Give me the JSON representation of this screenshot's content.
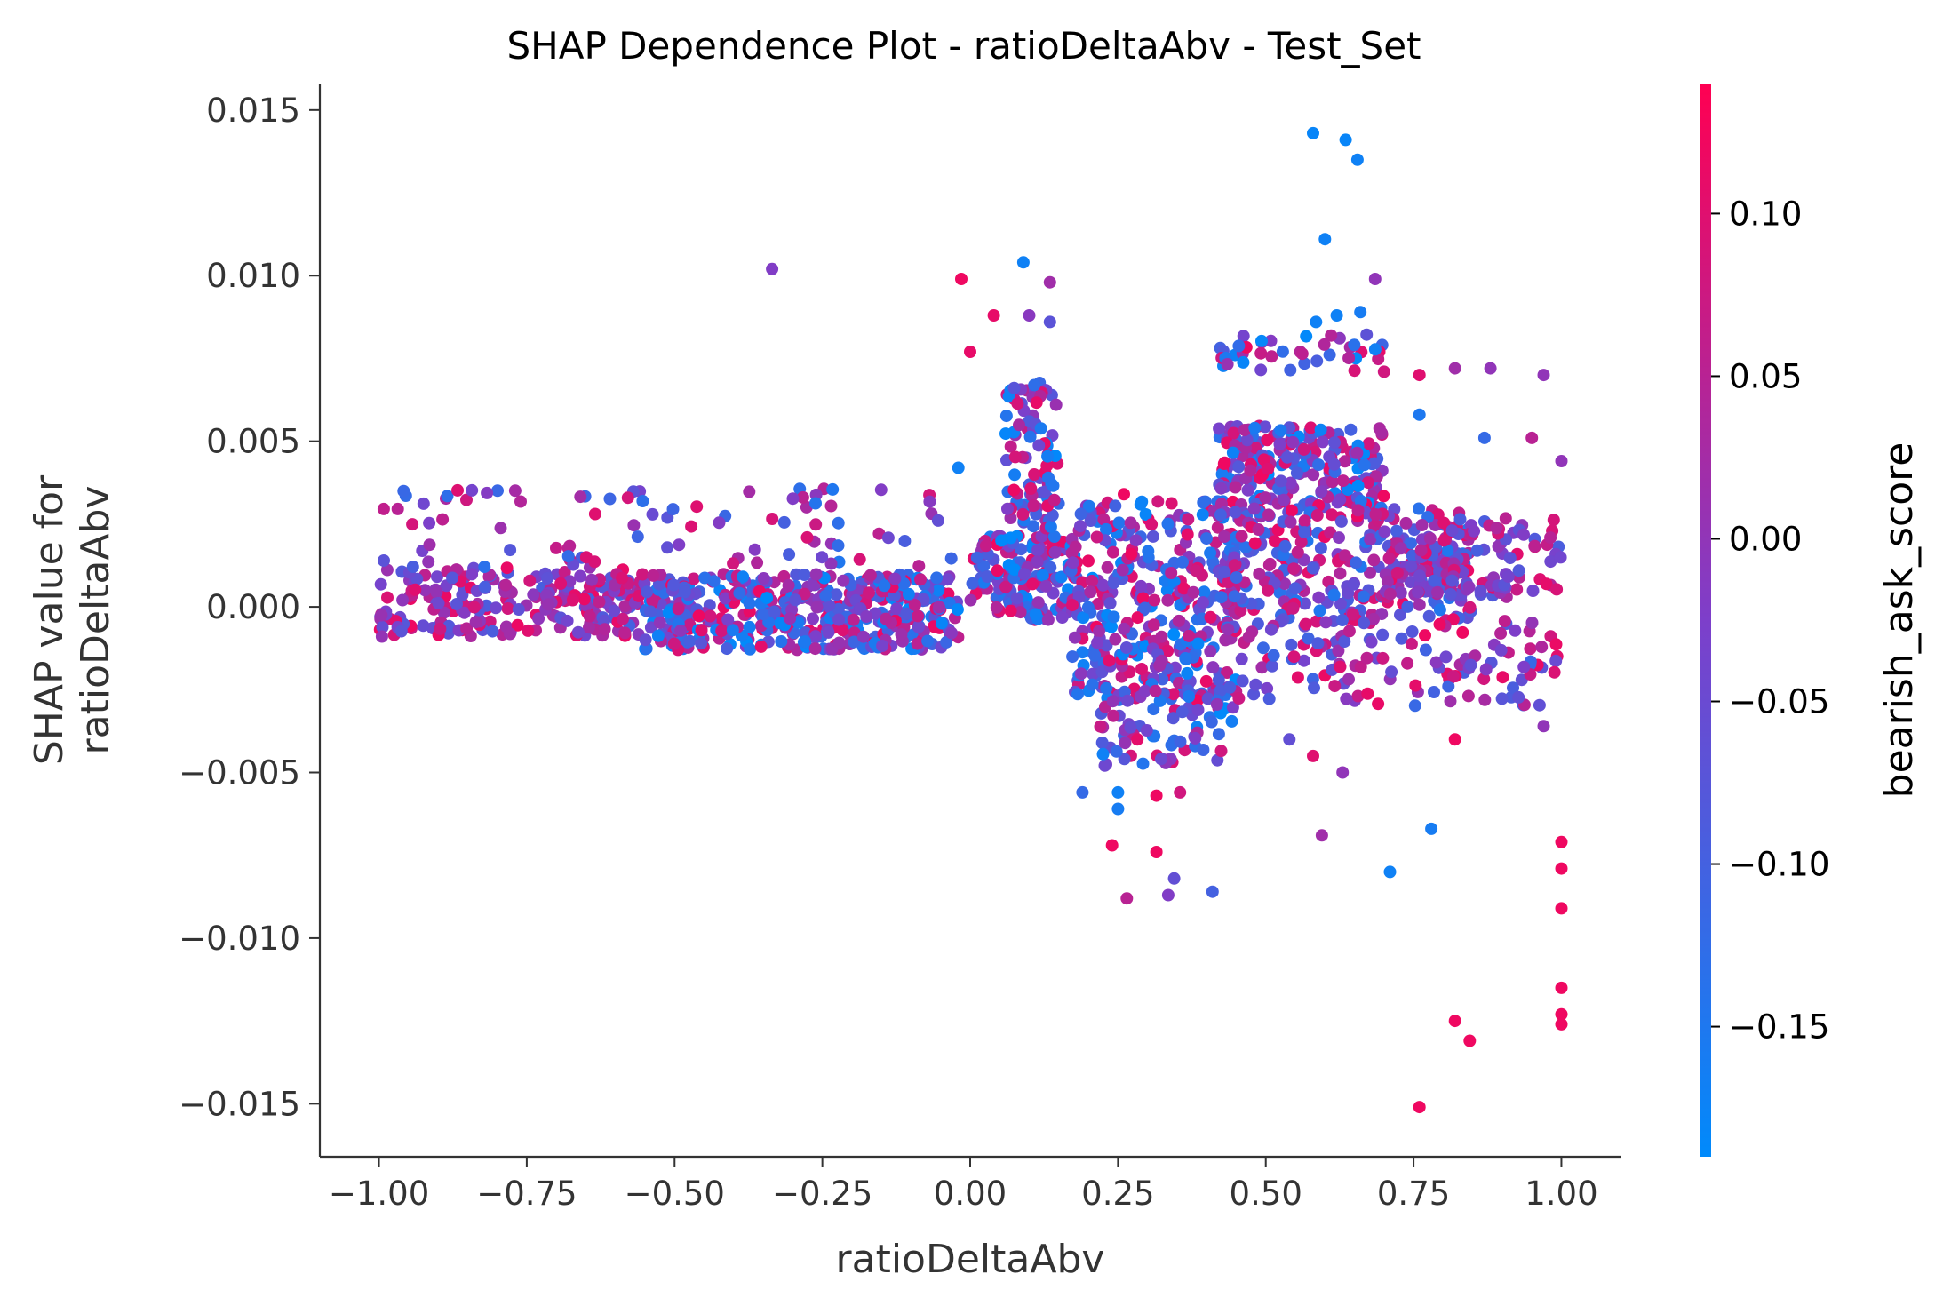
{
  "chart_data": {
    "type": "scatter",
    "title": "SHAP Dependence Plot - ratioDeltaAbv - Test_Set",
    "xlabel": "ratioDeltaAbv",
    "ylabel_lines": [
      "SHAP value for",
      "ratioDeltaAbv"
    ],
    "xlim": [
      -1.1,
      1.1
    ],
    "ylim": [
      -0.0166,
      0.0158
    ],
    "x_ticks": [
      {
        "value": -1.0,
        "label": "−1.00"
      },
      {
        "value": -0.75,
        "label": "−0.75"
      },
      {
        "value": -0.5,
        "label": "−0.50"
      },
      {
        "value": -0.25,
        "label": "−0.25"
      },
      {
        "value": 0.0,
        "label": "0.00"
      },
      {
        "value": 0.25,
        "label": "0.25"
      },
      {
        "value": 0.5,
        "label": "0.50"
      },
      {
        "value": 0.75,
        "label": "0.75"
      },
      {
        "value": 1.0,
        "label": "1.00"
      }
    ],
    "y_ticks": [
      {
        "value": 0.015,
        "label": "0.015"
      },
      {
        "value": 0.01,
        "label": "0.010"
      },
      {
        "value": 0.005,
        "label": "0.005"
      },
      {
        "value": 0.0,
        "label": "0.000"
      },
      {
        "value": -0.005,
        "label": "−0.005"
      },
      {
        "value": -0.01,
        "label": "−0.010"
      },
      {
        "value": -0.015,
        "label": "−0.015"
      }
    ],
    "grid": false,
    "colorbar": {
      "title": "bearish_ask_score",
      "range": [
        -0.19,
        0.14
      ],
      "low_color": "#008afb",
      "mid_color": "#7d3fca",
      "high_color": "#ff0052",
      "ticks": [
        {
          "value": 0.1,
          "label": "0.10"
        },
        {
          "value": 0.05,
          "label": "0.05"
        },
        {
          "value": 0.0,
          "label": "0.00"
        },
        {
          "value": -0.05,
          "label": "−0.05"
        },
        {
          "value": -0.1,
          "label": "−0.10"
        },
        {
          "value": -0.15,
          "label": "−0.15"
        }
      ]
    },
    "outlier_points": [
      {
        "x": 0.58,
        "y": 0.0143,
        "c": -0.18
      },
      {
        "x": 0.635,
        "y": 0.0141,
        "c": -0.18
      },
      {
        "x": 0.655,
        "y": 0.0135,
        "c": -0.17
      },
      {
        "x": 0.6,
        "y": 0.0111,
        "c": -0.17
      },
      {
        "x": -0.335,
        "y": 0.0102,
        "c": -0.02
      },
      {
        "x": 0.09,
        "y": 0.0104,
        "c": -0.17
      },
      {
        "x": -0.015,
        "y": 0.0099,
        "c": 0.12
      },
      {
        "x": 0.135,
        "y": 0.0098,
        "c": 0.02
      },
      {
        "x": 0.685,
        "y": 0.0099,
        "c": 0.0
      },
      {
        "x": 0.66,
        "y": 0.0089,
        "c": -0.16
      },
      {
        "x": 0.62,
        "y": 0.0088,
        "c": -0.17
      },
      {
        "x": 0.1,
        "y": 0.0088,
        "c": -0.01
      },
      {
        "x": 0.04,
        "y": 0.0088,
        "c": 0.11
      },
      {
        "x": 0.135,
        "y": 0.0086,
        "c": -0.07
      },
      {
        "x": 0.585,
        "y": 0.0086,
        "c": -0.17
      },
      {
        "x": 0.0,
        "y": 0.0077,
        "c": 0.11
      },
      {
        "x": 0.82,
        "y": 0.0072,
        "c": 0.02
      },
      {
        "x": 0.88,
        "y": 0.0072,
        "c": 0.0
      },
      {
        "x": 0.97,
        "y": 0.007,
        "c": 0.0
      },
      {
        "x": 0.76,
        "y": 0.007,
        "c": 0.1
      },
      {
        "x": 0.7,
        "y": 0.0071,
        "c": 0.08
      },
      {
        "x": 0.87,
        "y": 0.0051,
        "c": -0.12
      },
      {
        "x": 0.95,
        "y": 0.0051,
        "c": 0.05
      },
      {
        "x": 1.0,
        "y": 0.0044,
        "c": 0.0
      },
      {
        "x": -0.02,
        "y": 0.0042,
        "c": -0.17
      },
      {
        "x": 0.76,
        "y": 0.0058,
        "c": -0.15
      },
      {
        "x": 0.26,
        "y": 0.0034,
        "c": 0.12
      },
      {
        "x": 0.19,
        "y": -0.0056,
        "c": -0.12
      },
      {
        "x": 0.25,
        "y": -0.0056,
        "c": -0.17
      },
      {
        "x": 0.25,
        "y": -0.0061,
        "c": -0.16
      },
      {
        "x": 0.315,
        "y": -0.0057,
        "c": 0.12
      },
      {
        "x": 0.355,
        "y": -0.0056,
        "c": 0.08
      },
      {
        "x": 0.24,
        "y": -0.0072,
        "c": 0.12
      },
      {
        "x": 0.315,
        "y": -0.0074,
        "c": 0.12
      },
      {
        "x": 0.265,
        "y": -0.0088,
        "c": 0.05
      },
      {
        "x": 0.335,
        "y": -0.0087,
        "c": -0.02
      },
      {
        "x": 0.345,
        "y": -0.0082,
        "c": -0.06
      },
      {
        "x": 0.41,
        "y": -0.0086,
        "c": -0.1
      },
      {
        "x": 0.595,
        "y": -0.0069,
        "c": 0.02
      },
      {
        "x": 0.78,
        "y": -0.0067,
        "c": -0.16
      },
      {
        "x": 0.71,
        "y": -0.008,
        "c": -0.17
      },
      {
        "x": 0.54,
        "y": -0.004,
        "c": -0.06
      },
      {
        "x": 0.58,
        "y": -0.0045,
        "c": 0.1
      },
      {
        "x": 0.63,
        "y": -0.005,
        "c": 0.0
      },
      {
        "x": 0.82,
        "y": -0.004,
        "c": 0.12
      },
      {
        "x": 0.97,
        "y": -0.0036,
        "c": 0.0
      },
      {
        "x": 1.0,
        "y": -0.0071,
        "c": 0.12
      },
      {
        "x": 1.0,
        "y": -0.0079,
        "c": 0.12
      },
      {
        "x": 1.0,
        "y": -0.0091,
        "c": 0.12
      },
      {
        "x": 1.0,
        "y": -0.0115,
        "c": 0.12
      },
      {
        "x": 1.0,
        "y": -0.0123,
        "c": 0.12
      },
      {
        "x": 1.0,
        "y": -0.0126,
        "c": 0.12
      },
      {
        "x": 0.82,
        "y": -0.0125,
        "c": 0.12
      },
      {
        "x": 0.845,
        "y": -0.0131,
        "c": 0.12
      },
      {
        "x": 0.76,
        "y": -0.0151,
        "c": 0.12
      }
    ],
    "clusters": [
      {
        "x": [
          -1.0,
          -0.55
        ],
        "y": [
          -0.0009,
          0.0012
        ],
        "c": [
          -0.1,
          0.12
        ],
        "n": 240
      },
      {
        "x": [
          -0.55,
          -0.02
        ],
        "y": [
          -0.0013,
          0.001
        ],
        "c": [
          -0.19,
          0.12
        ],
        "n": 460
      },
      {
        "x": [
          -1.0,
          -0.02
        ],
        "y": [
          0.0012,
          0.0036
        ],
        "c": [
          -0.15,
          0.1
        ],
        "n": 90
      },
      {
        "x": [
          0.0,
          0.18
        ],
        "y": [
          -0.0004,
          0.0022
        ],
        "c": [
          -0.19,
          0.12
        ],
        "n": 170
      },
      {
        "x": [
          0.06,
          0.15
        ],
        "y": [
          0.0022,
          0.0068
        ],
        "c": [
          -0.19,
          0.12
        ],
        "n": 90
      },
      {
        "x": [
          0.17,
          0.45
        ],
        "y": [
          -0.0028,
          0.0032
        ],
        "c": [
          -0.19,
          0.12
        ],
        "n": 340
      },
      {
        "x": [
          0.22,
          0.45
        ],
        "y": [
          -0.0048,
          -0.0024
        ],
        "c": [
          -0.19,
          0.12
        ],
        "n": 80
      },
      {
        "x": [
          0.42,
          0.7
        ],
        "y": [
          0.003,
          0.0055
        ],
        "c": [
          -0.19,
          0.12
        ],
        "n": 220
      },
      {
        "x": [
          0.42,
          0.7
        ],
        "y": [
          0.0071,
          0.0083
        ],
        "c": [
          -0.19,
          0.12
        ],
        "n": 40
      },
      {
        "x": [
          0.42,
          0.85
        ],
        "y": [
          -0.0005,
          0.003
        ],
        "c": [
          -0.15,
          0.12
        ],
        "n": 300
      },
      {
        "x": [
          0.42,
          1.0
        ],
        "y": [
          -0.003,
          -0.0004
        ],
        "c": [
          -0.12,
          0.12
        ],
        "n": 130
      },
      {
        "x": [
          0.7,
          1.0
        ],
        "y": [
          0.0003,
          0.0027
        ],
        "c": [
          -0.1,
          0.12
        ],
        "n": 140
      }
    ]
  }
}
